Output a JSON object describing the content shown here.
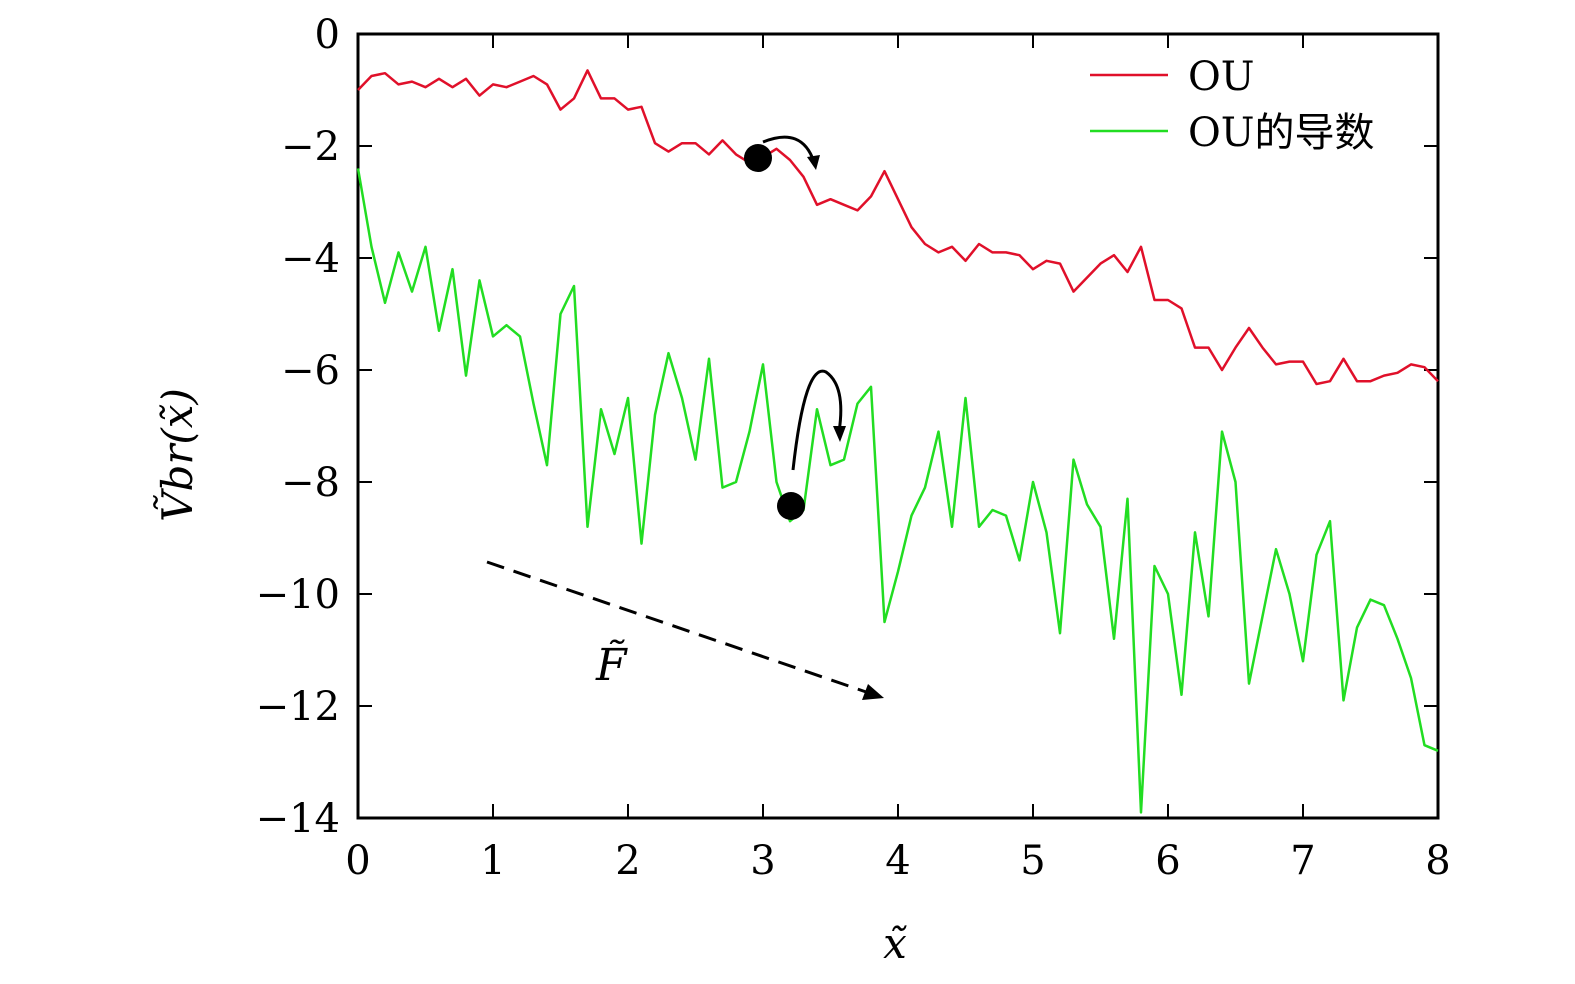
{
  "chart_data": {
    "type": "line",
    "xlabel": "x̃",
    "ylabel": "Ṽbr(x̃)",
    "xlim": [
      0,
      8
    ],
    "ylim": [
      -14,
      0
    ],
    "x_ticks": [
      "0",
      "1",
      "2",
      "3",
      "4",
      "5",
      "6",
      "7",
      "8"
    ],
    "y_ticks": [
      "0",
      "−2",
      "−4",
      "−6",
      "−8",
      "−10",
      "−12",
      "−14"
    ],
    "x_tick_values": [
      0,
      1,
      2,
      3,
      4,
      5,
      6,
      7,
      8
    ],
    "y_tick_values": [
      0,
      -2,
      -4,
      -6,
      -8,
      -10,
      -12,
      -14
    ],
    "grid": false,
    "legend_position": "top-right",
    "annotations": {
      "force_label": "F̃"
    },
    "series": [
      {
        "name": "OU",
        "color": "#e0102a",
        "x": [
          0,
          0.1,
          0.2,
          0.3,
          0.4,
          0.5,
          0.6,
          0.7,
          0.8,
          0.9,
          1.0,
          1.1,
          1.2,
          1.3,
          1.4,
          1.5,
          1.6,
          1.7,
          1.8,
          1.9,
          2.0,
          2.1,
          2.2,
          2.3,
          2.4,
          2.5,
          2.6,
          2.7,
          2.8,
          2.9,
          3.0,
          3.1,
          3.2,
          3.3,
          3.4,
          3.5,
          3.6,
          3.7,
          3.8,
          3.9,
          4.0,
          4.1,
          4.2,
          4.3,
          4.4,
          4.5,
          4.6,
          4.7,
          4.8,
          4.9,
          5.0,
          5.1,
          5.2,
          5.3,
          5.4,
          5.5,
          5.6,
          5.7,
          5.8,
          5.9,
          6.0,
          6.1,
          6.2,
          6.3,
          6.4,
          6.5,
          6.6,
          6.7,
          6.8,
          6.9,
          7.0,
          7.1,
          7.2,
          7.3,
          7.4,
          7.5,
          7.6,
          7.7,
          7.8,
          7.9,
          8.0
        ],
        "values": [
          -1.0,
          -0.75,
          -0.7,
          -0.9,
          -0.85,
          -0.95,
          -0.8,
          -0.95,
          -0.8,
          -1.1,
          -0.9,
          -0.95,
          -0.85,
          -0.75,
          -0.9,
          -1.35,
          -1.15,
          -0.65,
          -1.15,
          -1.15,
          -1.35,
          -1.3,
          -1.95,
          -2.1,
          -1.95,
          -1.95,
          -2.15,
          -1.9,
          -2.15,
          -2.3,
          -2.2,
          -2.05,
          -2.25,
          -2.55,
          -3.05,
          -2.95,
          -3.05,
          -3.15,
          -2.9,
          -2.45,
          -2.95,
          -3.45,
          -3.75,
          -3.9,
          -3.8,
          -4.05,
          -3.75,
          -3.9,
          -3.9,
          -3.95,
          -4.2,
          -4.05,
          -4.1,
          -4.6,
          -4.35,
          -4.1,
          -3.95,
          -4.25,
          -3.8,
          -4.75,
          -4.75,
          -4.9,
          -5.6,
          -5.6,
          -6.0,
          -5.6,
          -5.25,
          -5.6,
          -5.9,
          -5.85,
          -5.85,
          -6.25,
          -6.2,
          -5.8,
          -6.2,
          -6.2,
          -6.1,
          -6.05,
          -5.9,
          -5.95,
          -6.2
        ]
      },
      {
        "name": "OU的导数",
        "color": "#22dd22",
        "x": [
          0,
          0.1,
          0.2,
          0.3,
          0.4,
          0.5,
          0.6,
          0.7,
          0.8,
          0.9,
          1.0,
          1.1,
          1.2,
          1.3,
          1.4,
          1.5,
          1.6,
          1.7,
          1.8,
          1.9,
          2.0,
          2.1,
          2.2,
          2.3,
          2.4,
          2.5,
          2.6,
          2.7,
          2.8,
          2.9,
          3.0,
          3.1,
          3.2,
          3.3,
          3.4,
          3.5,
          3.6,
          3.7,
          3.8,
          3.9,
          4.0,
          4.1,
          4.2,
          4.3,
          4.4,
          4.5,
          4.6,
          4.7,
          4.8,
          4.9,
          5.0,
          5.1,
          5.2,
          5.3,
          5.4,
          5.5,
          5.6,
          5.7,
          5.8,
          5.9,
          6.0,
          6.1,
          6.2,
          6.3,
          6.4,
          6.5,
          6.6,
          6.7,
          6.8,
          6.9,
          7.0,
          7.1,
          7.2,
          7.3,
          7.4,
          7.5,
          7.6,
          7.7,
          7.8,
          7.9,
          8.0
        ],
        "values": [
          -2.4,
          -3.8,
          -4.8,
          -3.9,
          -4.6,
          -3.8,
          -5.3,
          -4.2,
          -6.1,
          -4.4,
          -5.4,
          -5.2,
          -5.4,
          -6.6,
          -7.7,
          -5.0,
          -4.5,
          -8.8,
          -6.7,
          -7.5,
          -6.5,
          -9.1,
          -6.8,
          -5.7,
          -6.5,
          -7.6,
          -5.8,
          -8.1,
          -8.0,
          -7.1,
          -5.9,
          -8.0,
          -8.7,
          -8.5,
          -6.7,
          -7.7,
          -7.6,
          -6.6,
          -6.3,
          -10.5,
          -9.6,
          -8.6,
          -8.1,
          -7.1,
          -8.8,
          -6.5,
          -8.8,
          -8.5,
          -8.6,
          -9.4,
          -8.0,
          -8.9,
          -10.7,
          -7.6,
          -8.4,
          -8.8,
          -10.8,
          -8.3,
          -13.9,
          -9.5,
          -10.0,
          -11.8,
          -8.9,
          -10.4,
          -7.1,
          -8.0,
          -11.6,
          -10.4,
          -9.2,
          -10.0,
          -11.2,
          -9.3,
          -8.7,
          -11.9,
          -10.6,
          -10.1,
          -10.2,
          -10.8,
          -11.5,
          -12.7,
          -12.8
        ]
      }
    ]
  }
}
